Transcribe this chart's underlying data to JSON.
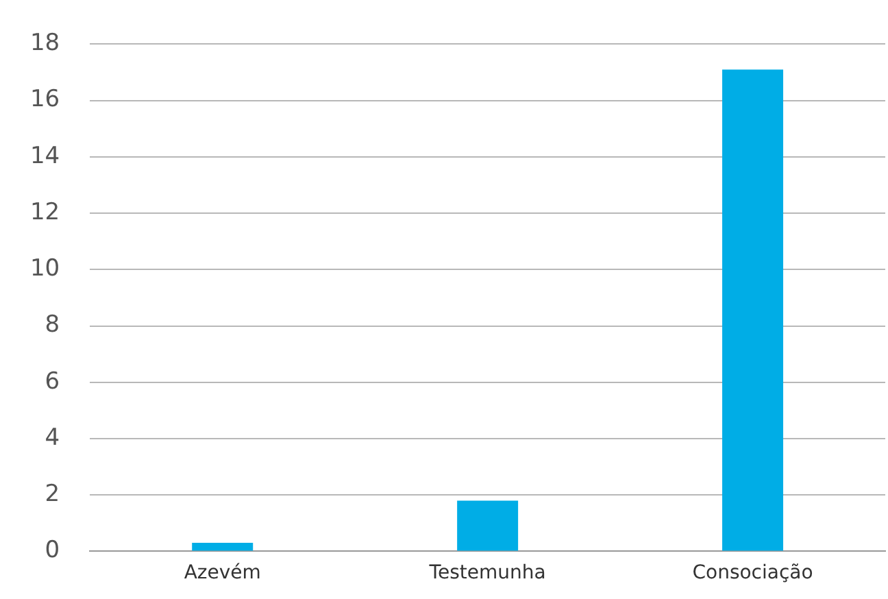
{
  "chart_data": {
    "type": "bar",
    "categories": [
      "Azevém",
      "Testemunha",
      "Consociação"
    ],
    "values": [
      0.3,
      1.8,
      17.1
    ],
    "color": "#00ade6",
    "ylim": [
      0,
      18
    ],
    "yticks": [
      0,
      2,
      4,
      6,
      8,
      10,
      12,
      14,
      16,
      18
    ],
    "grid": "y"
  }
}
